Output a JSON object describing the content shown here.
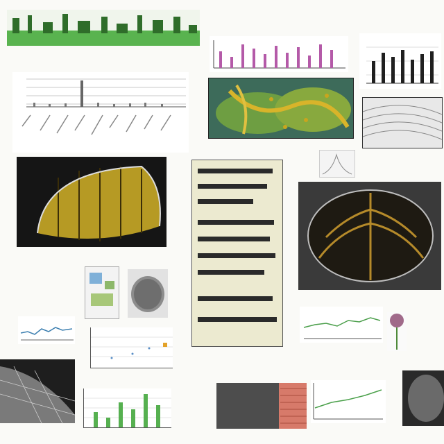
{
  "page": {
    "background": "#fafaf7",
    "note_text": "",
    "legible_text": []
  },
  "colors": {
    "green": "#56b050",
    "magenta": "#b45aa8",
    "dark": "#222222",
    "gold": "#b69a24",
    "tan": "#ecead0",
    "salmon": "#d77a6a"
  },
  "panels": [
    {
      "name": "top-green-banner",
      "kind": "image"
    },
    {
      "name": "top-left-bar-chart",
      "kind": "chart"
    },
    {
      "name": "top-center-magenta-bar-chart",
      "kind": "chart"
    },
    {
      "name": "top-right-black-bar-chart",
      "kind": "chart"
    },
    {
      "name": "center-botanical-illustration",
      "kind": "image"
    },
    {
      "name": "right-grayscale-micrograph",
      "kind": "image"
    },
    {
      "name": "small-curve-plot",
      "kind": "chart"
    },
    {
      "name": "golden-leaf-micrograph",
      "kind": "image"
    },
    {
      "name": "center-text-box",
      "kind": "text"
    },
    {
      "name": "leaf-venation-image",
      "kind": "image"
    },
    {
      "name": "small-figure-thumbnail",
      "kind": "image"
    },
    {
      "name": "gray-specimen-image",
      "kind": "image"
    },
    {
      "name": "left-line-chart",
      "kind": "chart"
    },
    {
      "name": "small-scatter-chart",
      "kind": "chart"
    },
    {
      "name": "right-line-chart",
      "kind": "chart"
    },
    {
      "name": "flower-image",
      "kind": "image"
    },
    {
      "name": "bottom-left-mesh-image",
      "kind": "image"
    },
    {
      "name": "bottom-green-bar-chart",
      "kind": "chart"
    },
    {
      "name": "bottom-center-texture-image",
      "kind": "image"
    },
    {
      "name": "bottom-right-line-chart",
      "kind": "chart"
    },
    {
      "name": "bottom-right-micrograph",
      "kind": "image"
    }
  ]
}
